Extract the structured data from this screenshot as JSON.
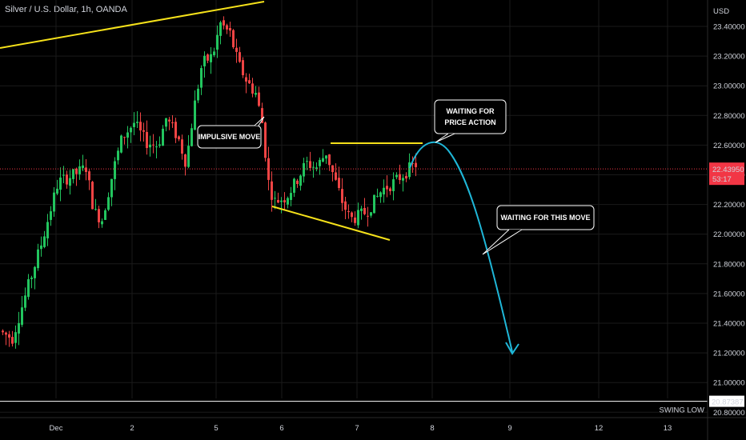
{
  "title": "Silver / U.S. Dollar, 1h, OANDA",
  "chart_data": {
    "type": "candlestick",
    "currency_label": "USD",
    "y_ticks": [
      "23.40000",
      "23.20000",
      "23.00000",
      "22.80000",
      "22.60000",
      "22.40000",
      "22.20000",
      "22.00000",
      "21.80000",
      "21.60000",
      "21.40000",
      "21.20000",
      "21.00000",
      "20.80000"
    ],
    "y_tick_values": [
      23.4,
      23.2,
      23.0,
      22.8,
      22.6,
      22.4,
      22.2,
      22.0,
      21.8,
      21.6,
      21.4,
      21.2,
      21.0,
      20.8
    ],
    "ylim": [
      20.76,
      23.5
    ],
    "x_ticks": [
      "Dec",
      "2",
      "5",
      "6",
      "7",
      "8",
      "9",
      "12",
      "13"
    ],
    "current_price": {
      "value": 22.4395,
      "label": "22.43950",
      "countdown": "53:17",
      "color": "#f23645"
    },
    "swing_low": {
      "value": 20.87387,
      "label": "20.87387",
      "text": "SWING LOW"
    },
    "annotations": {
      "impulsive": "IMPULSIVE MOVE",
      "price_action_1": "WAITING FOR",
      "price_action_2": "PRICE ACTION",
      "this_move": "WAITING FOR THIS MOVE"
    },
    "colors": {
      "up": "#22c55e",
      "down": "#ef4444",
      "trendline": "#f5e11a",
      "projection": "#1fb7d8",
      "grid": "#1a1a1a"
    }
  }
}
